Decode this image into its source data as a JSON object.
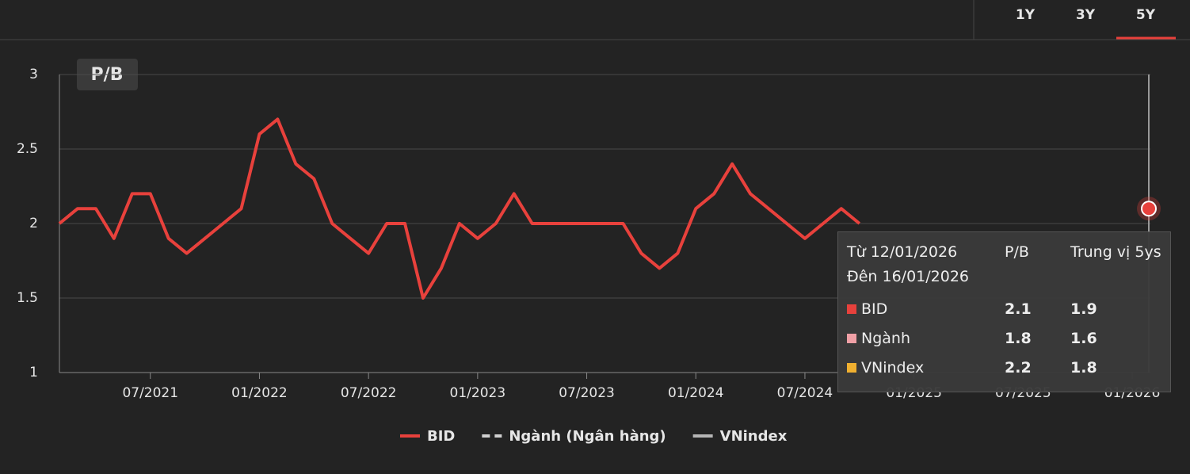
{
  "tabs": {
    "items": [
      "1Y",
      "3Y",
      "5Y"
    ],
    "active": "5Y"
  },
  "chart_data": {
    "type": "line",
    "badge": "P/B",
    "x": [
      "2021-02",
      "2021-03",
      "2021-04",
      "2021-05",
      "2021-06",
      "2021-07",
      "2021-08",
      "2021-09",
      "2021-10",
      "2021-11",
      "2021-12",
      "2022-01",
      "2022-02",
      "2022-03",
      "2022-04",
      "2022-05",
      "2022-06",
      "2022-07",
      "2022-08",
      "2022-09",
      "2022-10",
      "2022-11",
      "2022-12",
      "2023-01",
      "2023-02",
      "2023-03",
      "2023-04",
      "2023-05",
      "2023-06",
      "2023-07",
      "2023-08",
      "2023-09",
      "2023-10",
      "2023-11",
      "2023-12",
      "2024-01",
      "2024-02",
      "2024-03",
      "2024-04",
      "2024-05",
      "2024-06",
      "2024-07",
      "2024-08",
      "2024-09",
      "2024-10"
    ],
    "xlim": [
      "2021-02",
      "2026-02"
    ],
    "xticks": [
      {
        "value": "2021-07",
        "label": "07/2021"
      },
      {
        "value": "2022-01",
        "label": "01/2022"
      },
      {
        "value": "2022-07",
        "label": "07/2022"
      },
      {
        "value": "2023-01",
        "label": "01/2023"
      },
      {
        "value": "2023-07",
        "label": "07/2023"
      },
      {
        "value": "2024-01",
        "label": "01/2024"
      },
      {
        "value": "2024-07",
        "label": "07/2024"
      },
      {
        "value": "2025-01",
        "label": "01/2025"
      },
      {
        "value": "2025-07",
        "label": "07/2025"
      },
      {
        "value": "2026-01",
        "label": "01/2026"
      }
    ],
    "ylim": [
      1,
      3
    ],
    "yticks": [
      1,
      1.5,
      2,
      2.5,
      3
    ],
    "grid": true,
    "series": [
      {
        "name": "BID",
        "color": "#e8413c",
        "style": "solid",
        "values": [
          2.0,
          2.1,
          2.1,
          1.9,
          2.2,
          2.2,
          1.9,
          1.8,
          1.9,
          2.0,
          2.1,
          2.6,
          2.7,
          2.4,
          2.3,
          2.0,
          1.9,
          1.8,
          2.0,
          2.0,
          1.5,
          1.7,
          2.0,
          1.9,
          2.0,
          2.2,
          2.0,
          2.0,
          2.0,
          2.0,
          2.0,
          2.0,
          1.8,
          1.7,
          1.8,
          2.1,
          2.2,
          2.4,
          2.2,
          2.1,
          2.0,
          1.9,
          2.0,
          2.1,
          2.0
        ]
      },
      {
        "name": "Ngành (Ngân hàng)",
        "color": "#d0d0d0",
        "style": "dashed",
        "values": [
          null,
          null,
          null,
          null,
          null,
          null,
          null,
          null,
          null,
          null,
          null,
          null,
          null,
          null,
          null,
          null,
          null,
          null,
          null,
          null,
          null,
          null,
          null,
          null,
          null,
          null,
          null,
          null,
          null,
          null,
          null,
          null,
          null,
          null,
          null,
          null,
          null,
          null,
          null,
          null,
          null,
          null,
          null,
          null,
          null
        ]
      },
      {
        "name": "VNindex",
        "color": "#b5b5b5",
        "style": "solid",
        "values": [
          null,
          null,
          null,
          null,
          null,
          null,
          null,
          null,
          null,
          null,
          null,
          null,
          null,
          null,
          null,
          null,
          null,
          null,
          null,
          null,
          null,
          null,
          null,
          null,
          null,
          null,
          null,
          null,
          null,
          null,
          null,
          null,
          null,
          null,
          null,
          null,
          null,
          null,
          null,
          null,
          null,
          null,
          null,
          null,
          null
        ]
      }
    ],
    "tooltip": {
      "from": "Từ 12/01/2026",
      "to": "Đên 16/01/2026",
      "headers": [
        "P/B",
        "Trung vị 5ys"
      ],
      "rows": [
        {
          "name": "BID",
          "color": "#e8413c",
          "values": [
            2.1,
            1.9
          ]
        },
        {
          "name": "Ngành",
          "color": "#f0a0a6",
          "values": [
            1.8,
            1.6
          ]
        },
        {
          "name": "VNindex",
          "color": "#f0b030",
          "values": [
            2.2,
            1.8
          ]
        }
      ]
    }
  }
}
